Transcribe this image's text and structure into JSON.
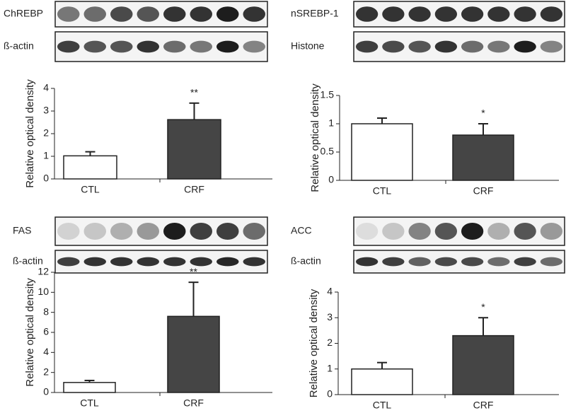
{
  "chart_data": [
    {
      "type": "bar",
      "blots": [
        "ChREBP",
        "ß-actin"
      ],
      "y_label": "Relative optical density",
      "categories": [
        "CTL",
        "CRF"
      ],
      "values": [
        1.02,
        2.62
      ],
      "errors": [
        0.18,
        0.73
      ],
      "colors": [
        "#ffffff",
        "#454545"
      ],
      "significance": "**",
      "ylim": [
        0,
        4
      ],
      "yticks": [
        0,
        1,
        2,
        3,
        4
      ]
    },
    {
      "type": "bar",
      "blots": [
        "nSREBP-1",
        "Histone"
      ],
      "y_label": "Relative optical density",
      "categories": [
        "CTL",
        "CRF"
      ],
      "values": [
        1.0,
        0.8
      ],
      "errors": [
        0.1,
        0.2
      ],
      "colors": [
        "#ffffff",
        "#454545"
      ],
      "significance": "*",
      "ylim": [
        0,
        1.5
      ],
      "yticks": [
        0,
        0.5,
        1,
        1.5
      ]
    },
    {
      "type": "bar",
      "blots": [
        "FAS",
        "ß-actin"
      ],
      "y_label": "Relative optical density",
      "categories": [
        "CTL",
        "CRF"
      ],
      "values": [
        1.0,
        7.6
      ],
      "errors": [
        0.2,
        3.4
      ],
      "colors": [
        "#ffffff",
        "#454545"
      ],
      "significance": "**",
      "ylim": [
        0,
        12
      ],
      "yticks": [
        0,
        2,
        4,
        6,
        8,
        10,
        12
      ]
    },
    {
      "type": "bar",
      "blots": [
        "ACC",
        "ß-actin"
      ],
      "y_label": "Relative optical density",
      "categories": [
        "CTL",
        "CRF"
      ],
      "values": [
        1.0,
        2.3
      ],
      "errors": [
        0.25,
        0.7
      ],
      "colors": [
        "#ffffff",
        "#454545"
      ],
      "significance": "*",
      "ylim": [
        0,
        4
      ],
      "yticks": [
        0,
        1,
        2,
        3,
        4
      ]
    }
  ]
}
